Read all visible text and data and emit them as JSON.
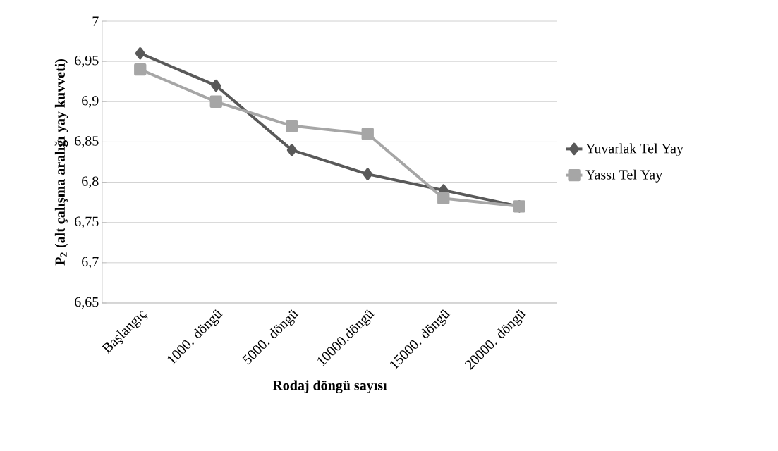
{
  "chart_data": {
    "type": "line",
    "xlabel": "Rodaj döngü sayısı",
    "ylabel": "P$_{2}$ (alt çalışma aralığı yay kuvveti)",
    "categories": [
      "Başlangıç",
      "1000. döngü",
      "5000. döngü",
      "10000.döngü",
      "15000. döngü",
      "20000. döngü"
    ],
    "series": [
      {
        "name": "Yuvarlak Tel Yay",
        "color": "#595959",
        "marker": "diamond",
        "values": [
          6.96,
          6.92,
          6.84,
          6.81,
          6.79,
          6.77
        ]
      },
      {
        "name": "Yassı Tel Yay",
        "color": "#a6a6a6",
        "marker": "square",
        "values": [
          6.94,
          6.9,
          6.87,
          6.86,
          6.78,
          6.77
        ]
      }
    ],
    "ylim": [
      6.65,
      7
    ],
    "yticks": [
      {
        "value": 6.65,
        "label": "6,65"
      },
      {
        "value": 6.7,
        "label": "6,7"
      },
      {
        "value": 6.75,
        "label": "6,75"
      },
      {
        "value": 6.8,
        "label": "6,8"
      },
      {
        "value": 6.85,
        "label": "6,85"
      },
      {
        "value": 6.9,
        "label": "6,9"
      },
      {
        "value": 6.95,
        "label": "6,95"
      },
      {
        "value": 7,
        "label": "7"
      }
    ],
    "grid": "y",
    "legend": "right"
  }
}
